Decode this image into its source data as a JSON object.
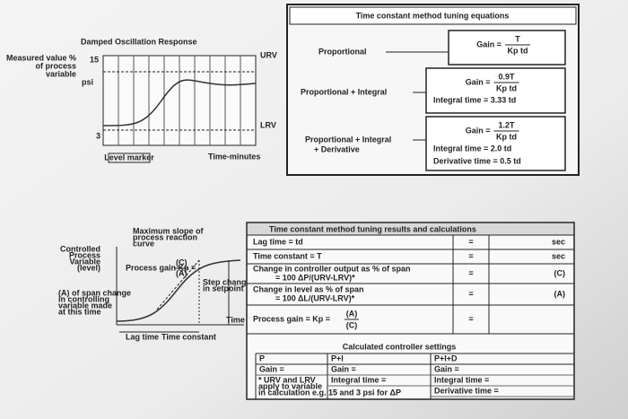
{
  "damped_graph": {
    "title": "Damped Oscillation Response",
    "y_label": [
      "Measured value %",
      "of process",
      "variable"
    ],
    "y_marks": [
      "15",
      "psi",
      "3"
    ],
    "right_marks": [
      "URV",
      "LRV"
    ],
    "x_label": "Time-minutes",
    "marker": "Level marker"
  },
  "tuning_equations": {
    "title": "Time constant method tuning equations",
    "rows": [
      {
        "mode": [
          "Proportional"
        ],
        "gain": {
          "lead": "Gain =",
          "num": "T",
          "den": "Kp td"
        },
        "lines": []
      },
      {
        "mode": [
          "Proportional + Integral"
        ],
        "gain": {
          "lead": "Gain =",
          "num": "0.9T",
          "den": "Kp td"
        },
        "lines": [
          "Integral time = 3.33 td"
        ]
      },
      {
        "mode": [
          "Proportional + Integral",
          "+ Derivative"
        ],
        "gain": {
          "lead": "Gain =",
          "num": "1.2T",
          "den": "Kp td"
        },
        "lines": [
          "Integral time = 2.0 td",
          "Derivative time = 0.5 td"
        ]
      }
    ]
  },
  "reaction_graph": {
    "y_label": [
      "Controlled",
      "Process",
      "Variable",
      "(level)"
    ],
    "slope_note": [
      "Maximum slope of",
      "process reaction",
      "curve"
    ],
    "gain_note": "Process gain Kp =",
    "gain_num": "(C)",
    "gain_den": "(A)",
    "step_note": [
      "Step change",
      "in setpoint"
    ],
    "span_note": [
      "(A) of span change",
      "in controlling",
      "variable made",
      "at this time"
    ],
    "lag": "Lag time",
    "time_constant": "Time constant",
    "x_label": "Time"
  },
  "results_table": {
    "title": "Time constant method tuning results and calculations",
    "rows": [
      {
        "label": [
          "Lag time = td"
        ],
        "eq": "=",
        "unit": "sec"
      },
      {
        "label": [
          "Time constant = T"
        ],
        "eq": "=",
        "unit": "sec"
      },
      {
        "label": [
          "Change in controller output as % of span",
          "= 100 ΔP/(URV-LRV)*"
        ],
        "eq": "=",
        "unit": "(C)"
      },
      {
        "label": [
          "Change in level as % of span",
          "= 100 ΔL/(URV-LRV)*"
        ],
        "eq": "=",
        "unit": "(A)"
      },
      {
        "label": [
          "Process gain = Kp ="
        ],
        "num": "(A)",
        "den": "(C)",
        "eq": "="
      }
    ],
    "settings_title": "Calculated controller settings",
    "columns": [
      {
        "head": "P",
        "lines": [
          "Gain ="
        ]
      },
      {
        "head": "P+I",
        "lines": [
          "Gain =",
          "Integral time ="
        ]
      },
      {
        "head": "P+I+D",
        "lines": [
          "Gain =",
          "Integral time =",
          "Derivative time ="
        ]
      }
    ],
    "footnote": [
      "* URV and LRV",
      "apply to variable",
      "in calculation e.g. 15 and 3 psi for ΔP"
    ]
  }
}
